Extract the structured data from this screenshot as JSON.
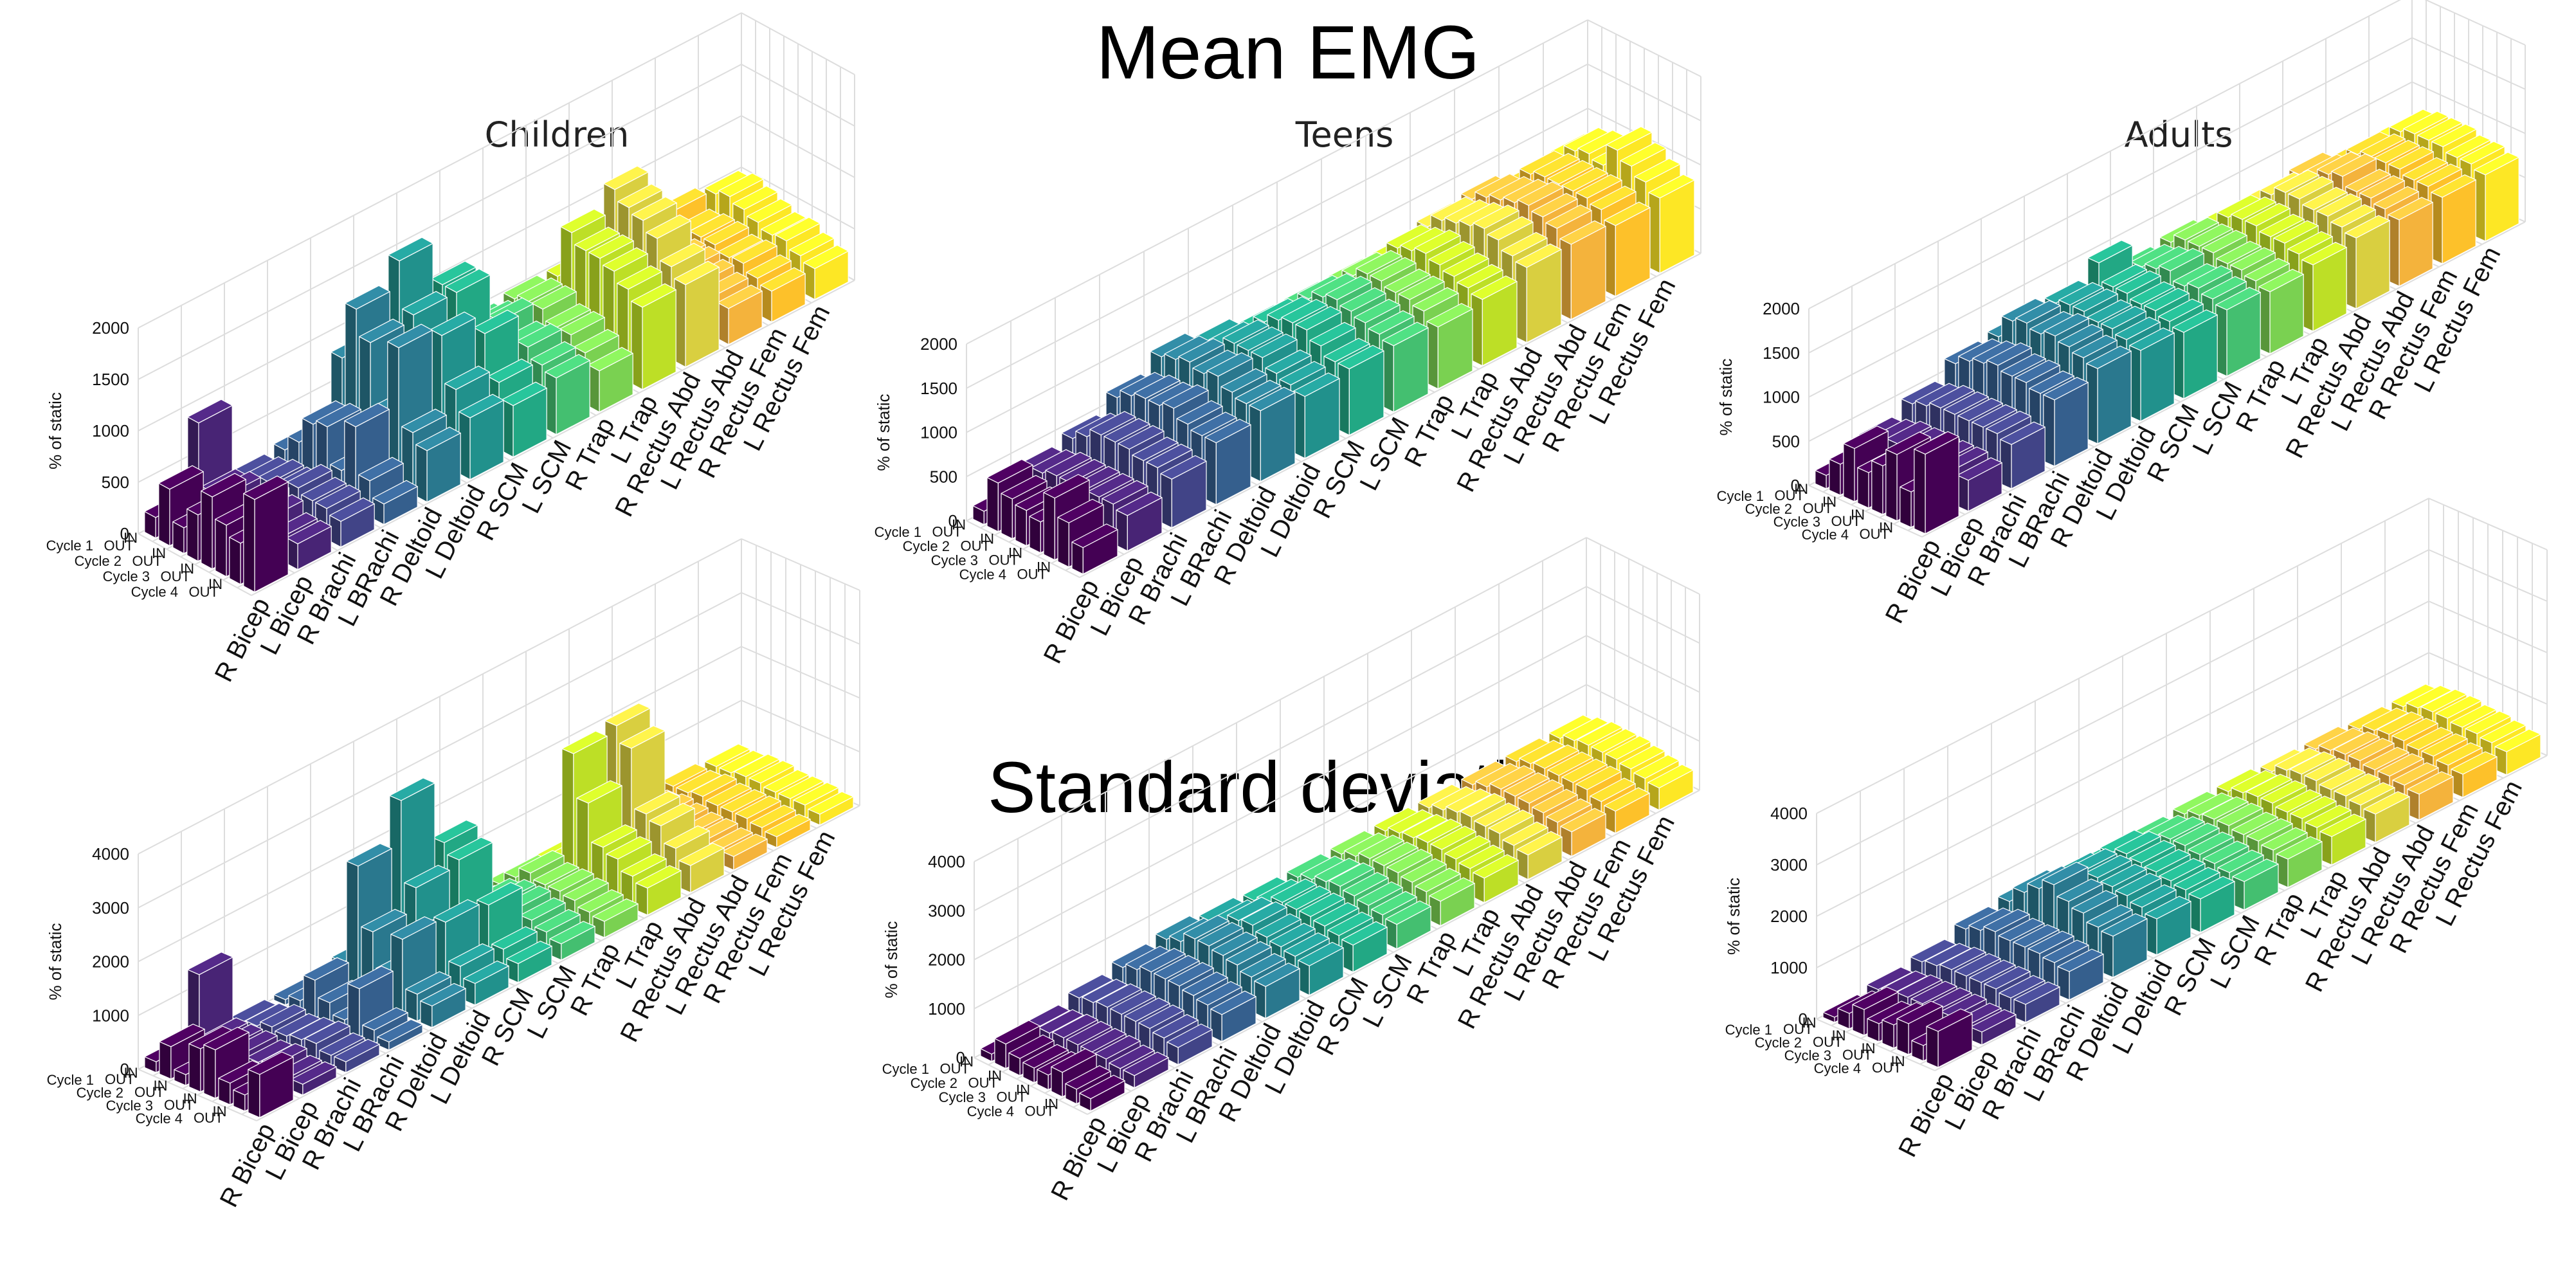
{
  "titles": {
    "main": "Mean EMG",
    "sd": "Standard deviation"
  },
  "groups": [
    "Children",
    "Teens",
    "Adults"
  ],
  "muscles": [
    "R Bicep",
    "L Bicep",
    "R Brachi",
    "L BRachi",
    "R Deltoid",
    "L Deltoid",
    "R SCM",
    "L SCM",
    "R Trap",
    "L Trap",
    "R Rectus Abd",
    "L Rectus Abd",
    "R Rectus Fem",
    "L Rectus Fem"
  ],
  "phases": [
    "IN",
    "OUT",
    "IN",
    "OUT",
    "IN",
    "OUT",
    "IN",
    "OUT"
  ],
  "cycles": [
    "Cycle 1",
    "Cycle 2",
    "Cycle 3",
    "Cycle 4"
  ],
  "colors": [
    "#440154",
    "#482475",
    "#414487",
    "#355f8d",
    "#2a788e",
    "#21918c",
    "#22a884",
    "#44bf70",
    "#7ad151",
    "#bddf26",
    "#d9cf40",
    "#f4b33c",
    "#fdc12a",
    "#fde725"
  ],
  "chart_data": [
    {
      "type": "bar3d",
      "group": "Children",
      "section": "Mean EMG",
      "ylabel": "% of static",
      "zlim": [
        0,
        2000
      ],
      "ticks": [
        0,
        500,
        1000,
        1500,
        2000
      ],
      "values": [
        [
          200,
          900,
          150,
          200,
          250,
          800,
          200,
          450,
          350,
          200,
          150,
          600,
          550,
          500
        ],
        [
          550,
          300,
          200,
          350,
          950,
          1000,
          1000,
          600,
          650,
          650,
          700,
          500,
          420,
          550
        ],
        [
          250,
          350,
          250,
          600,
          1500,
          1750,
          1300,
          700,
          700,
          1150,
          1350,
          550,
          450,
          500
        ],
        [
          450,
          300,
          250,
          650,
          1250,
          1300,
          1300,
          800,
          700,
          1050,
          1250,
          500,
          450,
          450
        ],
        [
          700,
          400,
          350,
          300,
          650,
          900,
          750,
          650,
          600,
          1050,
          1200,
          500,
          400,
          400
        ],
        [
          500,
          350,
          300,
          800,
          1350,
          1250,
          1050,
          700,
          600,
          1000,
          1100,
          450,
          420,
          420
        ],
        [
          400,
          250,
          300,
          350,
          600,
          800,
          650,
          600,
          500,
          900,
          900,
          400,
          350,
          350
        ],
        [
          900,
          250,
          250,
          200,
          500,
          600,
          500,
          550,
          400,
          800,
          800,
          350,
          300,
          300
        ]
      ]
    },
    {
      "type": "bar3d",
      "group": "Teens",
      "section": "Mean EMG",
      "ylabel": "% of static",
      "zlim": [
        0,
        2000
      ],
      "ticks": [
        0,
        500,
        1000,
        1500,
        2000
      ],
      "values": [
        [
          150,
          350,
          450,
          650,
          850,
          750,
          650,
          650,
          650,
          650,
          750,
          800,
          700,
          750
        ],
        [
          550,
          400,
          550,
          750,
          900,
          800,
          800,
          800,
          800,
          850,
          900,
          900,
          900,
          900
        ],
        [
          450,
          450,
          650,
          800,
          950,
          900,
          900,
          900,
          900,
          900,
          950,
          950,
          950,
          950
        ],
        [
          400,
          450,
          650,
          800,
          900,
          900,
          950,
          950,
          900,
          950,
          1000,
          1000,
          950,
          900
        ],
        [
          350,
          450,
          650,
          850,
          950,
          900,
          950,
          900,
          850,
          900,
          1050,
          1050,
          950,
          1150
        ],
        [
          700,
          450,
          600,
          750,
          850,
          800,
          850,
          850,
          850,
          850,
          1000,
          1000,
          950,
          1050
        ],
        [
          500,
          450,
          600,
          700,
          800,
          750,
          750,
          800,
          800,
          800,
          900,
          950,
          900,
          950
        ],
        [
          300,
          400,
          550,
          700,
          800,
          700,
          750,
          750,
          700,
          750,
          850,
          850,
          800,
          850
        ]
      ]
    },
    {
      "type": "bar3d",
      "group": "Adults",
      "section": "Mean EMG",
      "ylabel": "% of static",
      "zlim": [
        0,
        2000
      ],
      "ticks": [
        0,
        500,
        1000,
        1500,
        2000
      ],
      "values": [
        [
          150,
          300,
          450,
          650,
          700,
          600,
          650,
          700,
          750,
          700,
          700,
          750,
          650,
          650
        ],
        [
          350,
          350,
          500,
          750,
          950,
          900,
          1100,
          800,
          850,
          850,
          850,
          800,
          800,
          800
        ],
        [
          600,
          400,
          550,
          800,
          1000,
          950,
          900,
          850,
          850,
          900,
          950,
          900,
          850,
          850
        ],
        [
          400,
          400,
          550,
          850,
          950,
          950,
          900,
          900,
          850,
          900,
          950,
          950,
          850,
          850
        ],
        [
          550,
          400,
          550,
          800,
          1000,
          900,
          850,
          800,
          800,
          850,
          900,
          850,
          850,
          850
        ],
        [
          750,
          400,
          550,
          800,
          950,
          900,
          850,
          850,
          800,
          850,
          900,
          850,
          800,
          800
        ],
        [
          400,
          400,
          550,
          750,
          900,
          850,
          800,
          800,
          750,
          800,
          850,
          800,
          800,
          800
        ],
        [
          900,
          350,
          500,
          750,
          850,
          800,
          750,
          750,
          700,
          750,
          800,
          750,
          750,
          750
        ]
      ]
    },
    {
      "type": "bar3d",
      "group": "Children",
      "section": "Standard deviation",
      "ylabel": "% of static",
      "zlim": [
        0,
        4000
      ],
      "ticks": [
        0,
        1000,
        2000,
        3000,
        4000
      ],
      "values": [
        [
          200,
          1400,
          100,
          100,
          150,
          600,
          150,
          200,
          150,
          150,
          200,
          400,
          300,
          250
        ],
        [
          600,
          300,
          150,
          200,
          500,
          600,
          700,
          250,
          400,
          300,
          300,
          350,
          300,
          250
        ],
        [
          200,
          300,
          250,
          700,
          2400,
          3200,
          2000,
          500,
          600,
          2400,
          2500,
          400,
          350,
          300
        ],
        [
          800,
          300,
          200,
          400,
          1300,
          1700,
          1800,
          600,
          500,
          1600,
          2200,
          350,
          300,
          300
        ],
        [
          900,
          250,
          250,
          200,
          650,
          1000,
          850,
          600,
          500,
          900,
          1100,
          300,
          300,
          250
        ],
        [
          400,
          300,
          300,
          900,
          1400,
          1300,
          1200,
          500,
          450,
          800,
          1000,
          300,
          300,
          250
        ],
        [
          300,
          200,
          200,
          250,
          500,
          600,
          500,
          400,
          350,
          600,
          700,
          250,
          250,
          250
        ],
        [
          800,
          200,
          200,
          150,
          400,
          400,
          350,
          300,
          300,
          500,
          500,
          250,
          200,
          200
        ]
      ]
    },
    {
      "type": "bar3d",
      "group": "Teens",
      "section": "Standard deviation",
      "ylabel": "% of static",
      "zlim": [
        0,
        4000
      ],
      "ticks": [
        0,
        1000,
        2000,
        3000,
        4000
      ],
      "values": [
        [
          150,
          200,
          350,
          500,
          600,
          500,
          450,
          450,
          450,
          450,
          450,
          450,
          450,
          450
        ],
        [
          500,
          250,
          400,
          600,
          700,
          600,
          550,
          550,
          550,
          550,
          550,
          550,
          550,
          550
        ],
        [
          350,
          300,
          450,
          700,
          900,
          800,
          700,
          650,
          650,
          600,
          650,
          650,
          600,
          600
        ],
        [
          300,
          300,
          450,
          700,
          900,
          850,
          700,
          700,
          650,
          650,
          700,
          650,
          600,
          600
        ],
        [
          300,
          300,
          450,
          700,
          850,
          750,
          700,
          650,
          650,
          650,
          650,
          650,
          600,
          600
        ],
        [
          500,
          300,
          450,
          650,
          800,
          700,
          650,
          600,
          600,
          600,
          650,
          600,
          600,
          550
        ],
        [
          300,
          250,
          400,
          600,
          700,
          650,
          600,
          550,
          550,
          550,
          550,
          550,
          500,
          500
        ],
        [
          250,
          250,
          350,
          550,
          650,
          600,
          550,
          500,
          500,
          500,
          500,
          500,
          450,
          450
        ]
      ]
    },
    {
      "type": "bar3d",
      "group": "Adults",
      "section": "Standard deviation",
      "ylabel": "% of static",
      "zlim": [
        0,
        4000
      ],
      "ticks": [
        0,
        1000,
        2000,
        3000,
        4000
      ],
      "values": [
        [
          100,
          200,
          300,
          500,
          600,
          500,
          500,
          500,
          550,
          550,
          500,
          500,
          450,
          450
        ],
        [
          300,
          250,
          350,
          600,
          900,
          800,
          800,
          650,
          650,
          650,
          650,
          600,
          550,
          550
        ],
        [
          500,
          300,
          400,
          700,
          1100,
          1000,
          900,
          750,
          700,
          700,
          700,
          650,
          600,
          600
        ],
        [
          350,
          300,
          400,
          650,
          1300,
          1000,
          850,
          750,
          700,
          700,
          700,
          650,
          600,
          600
        ],
        [
          450,
          300,
          400,
          650,
          1100,
          950,
          800,
          700,
          650,
          650,
          650,
          600,
          550,
          550
        ],
        [
          600,
          300,
          400,
          650,
          1000,
          900,
          750,
          650,
          650,
          650,
          650,
          600,
          550,
          550
        ],
        [
          300,
          250,
          350,
          600,
          850,
          800,
          700,
          600,
          600,
          600,
          600,
          550,
          500,
          500
        ],
        [
          700,
          250,
          350,
          550,
          800,
          700,
          650,
          550,
          550,
          550,
          550,
          500,
          450,
          450
        ]
      ]
    }
  ]
}
